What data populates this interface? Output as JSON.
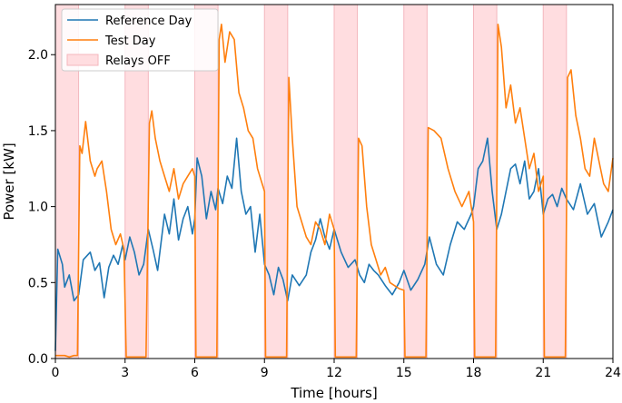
{
  "chart_data": {
    "type": "line",
    "title": "",
    "xlabel": "Time [hours]",
    "ylabel": "Power [kW]",
    "xlim": [
      0,
      24
    ],
    "ylim": [
      0,
      2.33
    ],
    "xticks": [
      0,
      3,
      6,
      9,
      12,
      15,
      18,
      21,
      24
    ],
    "yticks": [
      0.0,
      0.5,
      1.0,
      1.5,
      2.0
    ],
    "xtick_labels": [
      "0",
      "3",
      "6",
      "9",
      "12",
      "15",
      "18",
      "21",
      "24"
    ],
    "ytick_labels": [
      "0.0",
      "0.5",
      "1.0",
      "1.5",
      "2.0"
    ],
    "grid": false,
    "legend_position": "top-left",
    "legend": [
      "Reference Day",
      "Test Day",
      "Relays OFF"
    ],
    "relays_off": [
      [
        0,
        1
      ],
      [
        3,
        4
      ],
      [
        6,
        7
      ],
      [
        9,
        10
      ],
      [
        12,
        13
      ],
      [
        15,
        16
      ],
      [
        18,
        19
      ],
      [
        21,
        22
      ]
    ],
    "colors": {
      "reference": "#1f77b4",
      "test": "#ff7f0e",
      "relay_fill": "#ffdde0",
      "relay_edge": "#f4b6bd"
    },
    "series": [
      {
        "name": "Reference Day",
        "x": [
          0,
          0.1,
          0.3,
          0.4,
          0.6,
          0.8,
          1.0,
          1.2,
          1.5,
          1.7,
          1.9,
          2.1,
          2.3,
          2.5,
          2.7,
          2.9,
          3.0,
          3.2,
          3.4,
          3.6,
          3.8,
          4.0,
          4.2,
          4.4,
          4.7,
          4.9,
          5.1,
          5.3,
          5.5,
          5.7,
          5.9,
          6.0,
          6.1,
          6.3,
          6.5,
          6.7,
          6.9,
          7.0,
          7.2,
          7.4,
          7.6,
          7.8,
          8.0,
          8.2,
          8.4,
          8.6,
          8.8,
          9.0,
          9.2,
          9.4,
          9.6,
          9.8,
          10.0,
          10.2,
          10.5,
          10.8,
          11.0,
          11.2,
          11.4,
          11.6,
          11.8,
          12.0,
          12.3,
          12.6,
          12.9,
          13.1,
          13.3,
          13.5,
          13.7,
          13.9,
          14.2,
          14.5,
          14.8,
          15.0,
          15.3,
          15.6,
          15.9,
          16.1,
          16.4,
          16.7,
          17.0,
          17.3,
          17.6,
          17.9,
          18.0,
          18.2,
          18.4,
          18.6,
          18.8,
          19.0,
          19.2,
          19.4,
          19.6,
          19.8,
          20.0,
          20.2,
          20.4,
          20.6,
          20.8,
          21.0,
          21.2,
          21.4,
          21.6,
          21.8,
          22.0,
          22.3,
          22.6,
          22.9,
          23.2,
          23.5,
          23.8,
          24.0
        ],
        "values": [
          0.05,
          0.72,
          0.62,
          0.47,
          0.55,
          0.38,
          0.42,
          0.65,
          0.7,
          0.58,
          0.63,
          0.4,
          0.6,
          0.68,
          0.62,
          0.75,
          0.65,
          0.8,
          0.7,
          0.55,
          0.62,
          0.85,
          0.72,
          0.58,
          0.95,
          0.82,
          1.05,
          0.78,
          0.92,
          1.0,
          0.82,
          0.92,
          1.32,
          1.2,
          0.92,
          1.1,
          0.98,
          1.12,
          1.02,
          1.2,
          1.12,
          1.45,
          1.1,
          0.95,
          1.0,
          0.7,
          0.95,
          0.62,
          0.55,
          0.42,
          0.6,
          0.52,
          0.38,
          0.55,
          0.48,
          0.55,
          0.7,
          0.78,
          0.92,
          0.8,
          0.72,
          0.85,
          0.7,
          0.6,
          0.65,
          0.55,
          0.5,
          0.62,
          0.58,
          0.55,
          0.48,
          0.42,
          0.5,
          0.58,
          0.45,
          0.52,
          0.62,
          0.8,
          0.62,
          0.55,
          0.75,
          0.9,
          0.85,
          0.95,
          1.0,
          1.25,
          1.3,
          1.45,
          1.1,
          0.85,
          0.95,
          1.1,
          1.25,
          1.28,
          1.15,
          1.3,
          1.05,
          1.1,
          1.25,
          0.95,
          1.05,
          1.08,
          1.0,
          1.12,
          1.05,
          0.98,
          1.15,
          0.95,
          1.02,
          0.8,
          0.9,
          0.98
        ]
      },
      {
        "name": "Test Day",
        "x": [
          0,
          0.2,
          0.4,
          0.6,
          0.8,
          0.95,
          1.05,
          1.15,
          1.3,
          1.5,
          1.7,
          1.8,
          2.0,
          2.2,
          2.4,
          2.6,
          2.8,
          2.95,
          3.05,
          3.5,
          3.9,
          4.05,
          4.15,
          4.3,
          4.5,
          4.7,
          4.9,
          5.1,
          5.3,
          5.5,
          5.7,
          5.9,
          6.0,
          6.05,
          6.5,
          6.95,
          7.05,
          7.15,
          7.3,
          7.5,
          7.7,
          7.9,
          8.1,
          8.3,
          8.5,
          8.7,
          8.9,
          9.0,
          9.05,
          9.5,
          9.95,
          10.05,
          10.2,
          10.4,
          10.6,
          10.8,
          11.0,
          11.2,
          11.4,
          11.6,
          11.8,
          12.0,
          12.05,
          12.5,
          12.95,
          13.05,
          13.2,
          13.4,
          13.6,
          13.8,
          14.0,
          14.2,
          14.4,
          14.6,
          14.8,
          15.0,
          15.05,
          15.5,
          15.95,
          16.05,
          16.3,
          16.6,
          16.9,
          17.2,
          17.5,
          17.8,
          18.0,
          18.05,
          18.5,
          18.95,
          19.05,
          19.2,
          19.4,
          19.6,
          19.8,
          20.0,
          20.2,
          20.4,
          20.6,
          20.8,
          21.0,
          21.05,
          21.5,
          21.95,
          22.05,
          22.2,
          22.4,
          22.6,
          22.8,
          23.0,
          23.2,
          23.4,
          23.6,
          23.8,
          24.0
        ],
        "values": [
          0.02,
          0.02,
          0.02,
          0.01,
          0.02,
          0.02,
          1.4,
          1.35,
          1.56,
          1.3,
          1.2,
          1.25,
          1.3,
          1.1,
          0.85,
          0.75,
          0.82,
          0.72,
          0.01,
          0.01,
          0.01,
          1.55,
          1.63,
          1.45,
          1.3,
          1.2,
          1.1,
          1.25,
          1.05,
          1.15,
          1.2,
          1.25,
          1.2,
          0.01,
          0.01,
          0.01,
          2.1,
          2.2,
          1.95,
          2.15,
          2.1,
          1.75,
          1.65,
          1.5,
          1.45,
          1.25,
          1.15,
          1.1,
          0.01,
          0.01,
          0.01,
          1.85,
          1.45,
          1.0,
          0.9,
          0.8,
          0.75,
          0.9,
          0.85,
          0.75,
          0.95,
          0.85,
          0.01,
          0.01,
          0.01,
          1.45,
          1.4,
          1.0,
          0.75,
          0.65,
          0.55,
          0.6,
          0.5,
          0.48,
          0.46,
          0.45,
          0.01,
          0.01,
          0.01,
          1.52,
          1.5,
          1.45,
          1.25,
          1.1,
          1.0,
          1.1,
          0.9,
          0.01,
          0.01,
          0.01,
          2.2,
          2.05,
          1.65,
          1.8,
          1.55,
          1.65,
          1.45,
          1.25,
          1.35,
          1.1,
          1.2,
          0.01,
          0.01,
          0.01,
          1.85,
          1.9,
          1.6,
          1.45,
          1.25,
          1.2,
          1.45,
          1.3,
          1.15,
          1.1,
          1.32
        ]
      }
    ]
  }
}
